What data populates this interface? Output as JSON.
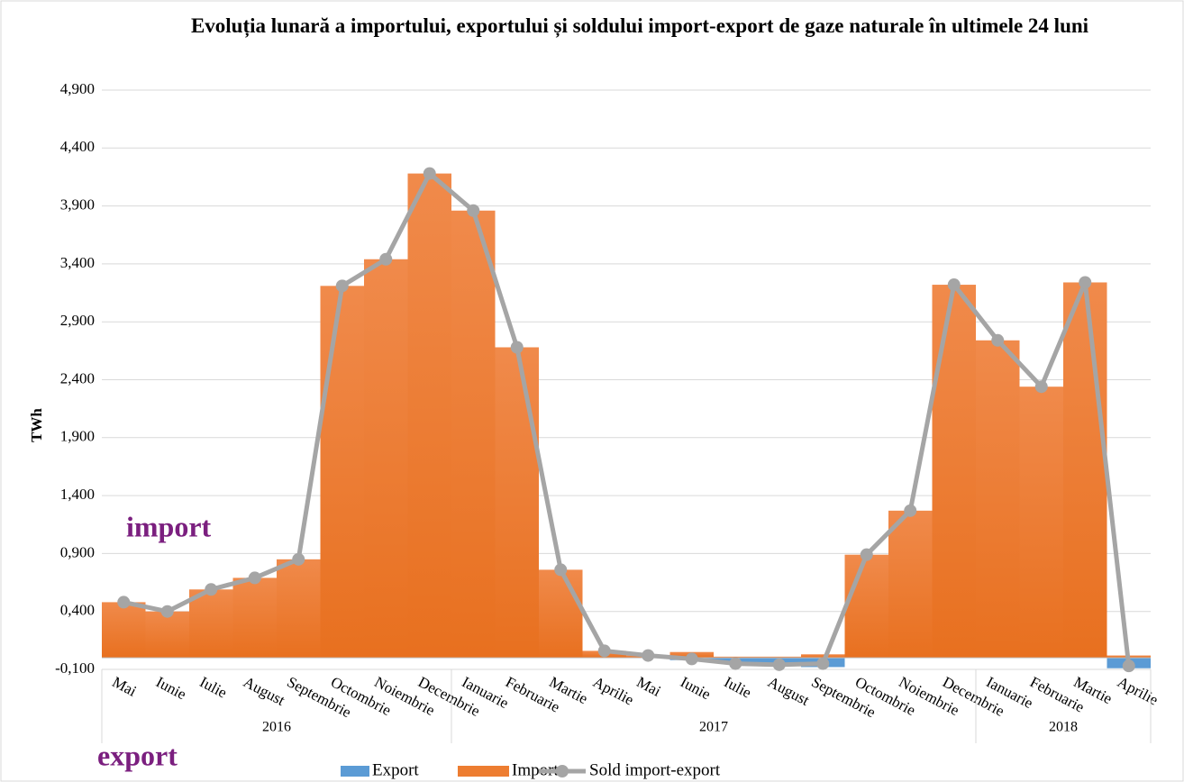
{
  "chart_data": {
    "type": "bar-line",
    "title": "Evoluția lunară a importului, exportului și soldului import-export de gaze naturale în ultimele 24 luni",
    "ylabel": "TWh",
    "annotations": [
      "import",
      "export"
    ],
    "categories": [
      "Mai",
      "Iunie",
      "Iulie",
      "August",
      "Septembrie",
      "Octombrie",
      "Noiembrie",
      "Decembrie",
      "Ianuarie",
      "Februarie",
      "Martie",
      "Aprilie",
      "Mai",
      "Iunie",
      "Iulie",
      "August",
      "Septembrie",
      "Octombrie",
      "Noiembrie",
      "Decembrie",
      "Ianuarie",
      "Februarie",
      "Martie",
      "Aprilie"
    ],
    "years": [
      "2016",
      "2016",
      "2016",
      "2016",
      "2016",
      "2016",
      "2016",
      "2016",
      "2017",
      "2017",
      "2017",
      "2017",
      "2017",
      "2017",
      "2017",
      "2017",
      "2017",
      "2017",
      "2017",
      "2017",
      "2018",
      "2018",
      "2018",
      "2018"
    ],
    "series": [
      {
        "name": "Export",
        "type": "bar",
        "color": "#5b9bd5",
        "values": [
          0,
          0,
          0,
          0,
          0,
          0,
          0,
          0,
          0,
          0,
          0,
          0,
          0,
          -0.02,
          -0.04,
          -0.05,
          -0.08,
          0,
          0,
          0,
          0,
          0,
          0,
          -0.09
        ]
      },
      {
        "name": "Import",
        "type": "bar",
        "color": "#ed7d31",
        "values": [
          0.48,
          0.4,
          0.59,
          0.69,
          0.85,
          3.21,
          3.44,
          4.18,
          3.86,
          2.68,
          0.76,
          0.06,
          0.02,
          0.05,
          0.01,
          0.01,
          0.03,
          0.89,
          1.27,
          3.22,
          2.74,
          2.34,
          3.24,
          0.02
        ]
      },
      {
        "name": "Sold import-export",
        "type": "line",
        "color": "#a5a5a5",
        "values": [
          0.48,
          0.4,
          0.59,
          0.69,
          0.85,
          3.21,
          3.44,
          4.18,
          3.86,
          2.68,
          0.76,
          0.06,
          0.02,
          -0.01,
          -0.05,
          -0.06,
          -0.05,
          0.89,
          1.27,
          3.22,
          2.74,
          2.34,
          3.24,
          -0.07
        ]
      }
    ],
    "ylim": [
      -0.1,
      4.9
    ],
    "yticks": [
      {
        "value": -0.1,
        "label": "-0,100"
      },
      {
        "value": 0.4,
        "label": "0,400"
      },
      {
        "value": 0.9,
        "label": "0,900"
      },
      {
        "value": 1.4,
        "label": "1,400"
      },
      {
        "value": 1.9,
        "label": "1,900"
      },
      {
        "value": 2.4,
        "label": "2,400"
      },
      {
        "value": 2.9,
        "label": "2,900"
      },
      {
        "value": 3.4,
        "label": "3,400"
      },
      {
        "value": 3.9,
        "label": "3,900"
      },
      {
        "value": 4.4,
        "label": "4,400"
      },
      {
        "value": 4.9,
        "label": "4,900"
      }
    ],
    "grid": true,
    "legend": "bottom"
  }
}
